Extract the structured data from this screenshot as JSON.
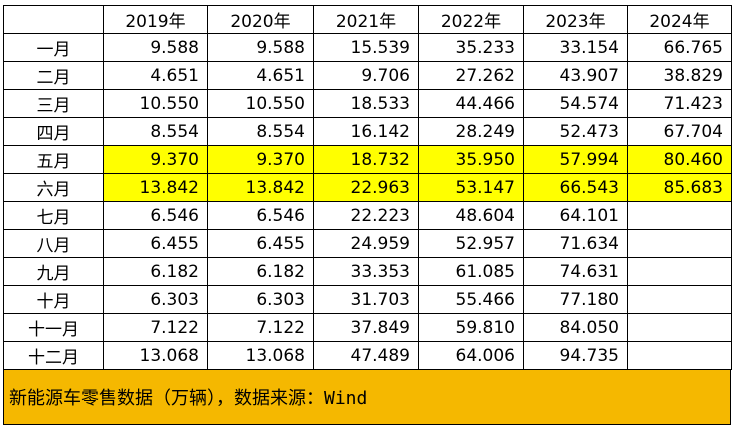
{
  "table": {
    "columns": [
      "2019年",
      "2020年",
      "2021年",
      "2022年",
      "2023年",
      "2024年"
    ],
    "rows": [
      [
        "一月",
        "9.588",
        "9.588",
        "15.539",
        "35.233",
        "33.154",
        "66.765"
      ],
      [
        "二月",
        "4.651",
        "4.651",
        "9.706",
        "27.262",
        "43.907",
        "38.829"
      ],
      [
        "三月",
        "10.550",
        "10.550",
        "18.533",
        "44.466",
        "54.574",
        "71.423"
      ],
      [
        "四月",
        "8.554",
        "8.554",
        "16.142",
        "28.249",
        "52.473",
        "67.704"
      ],
      [
        "五月",
        "9.370",
        "9.370",
        "18.732",
        "35.950",
        "57.994",
        "80.460"
      ],
      [
        "六月",
        "13.842",
        "13.842",
        "22.963",
        "53.147",
        "66.543",
        "85.683"
      ],
      [
        "七月",
        "6.546",
        "6.546",
        "22.223",
        "48.604",
        "64.101",
        null
      ],
      [
        "八月",
        "6.455",
        "6.455",
        "24.959",
        "52.957",
        "71.634",
        null
      ],
      [
        "九月",
        "6.182",
        "6.182",
        "33.353",
        "61.085",
        "74.631",
        null
      ],
      [
        "十月",
        "6.303",
        "6.303",
        "31.703",
        "55.466",
        "77.180",
        null
      ],
      [
        "十一月",
        "7.122",
        "7.122",
        "37.849",
        "59.810",
        "84.050",
        null
      ],
      [
        "十二月",
        "13.068",
        "13.068",
        "47.489",
        "64.006",
        "94.735",
        null
      ]
    ],
    "highlight": {
      "rows": [
        4,
        5
      ],
      "color": "#ffff00"
    }
  },
  "footer": "新能源车零售数据（万辆），数据来源：Wind"
}
